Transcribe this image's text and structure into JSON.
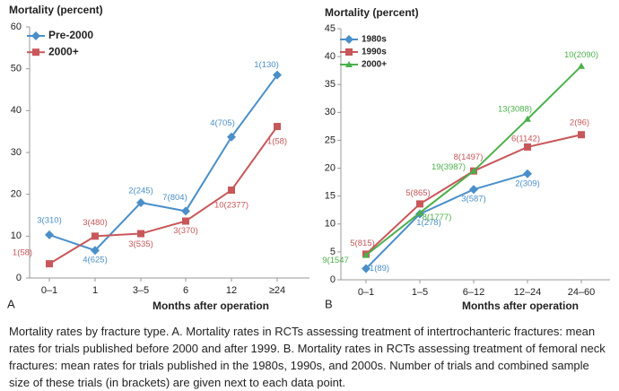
{
  "chart_data": [
    {
      "type": "line",
      "title": "Mortality (percent)",
      "panel": "A",
      "xlabel": "Months after operation",
      "categories": [
        "0–1",
        "1",
        "3–5",
        "6",
        "12",
        "≥24"
      ],
      "ylim": [
        0,
        60
      ],
      "yticks": [
        0,
        10,
        20,
        30,
        40,
        50,
        60
      ],
      "series": [
        {
          "name": "Pre-2000",
          "color": "#4a8fc8",
          "marker": "diamond",
          "values": [
            10.3,
            6.6,
            18,
            16,
            33.7,
            48.5
          ],
          "value_labels": [
            "3(310)",
            "4(625)",
            "2(245)",
            "7(804)",
            "4(705)",
            "1(130)"
          ]
        },
        {
          "name": "2000+",
          "color": "#c8575a",
          "marker": "square",
          "values": [
            3.4,
            10,
            10.6,
            13.6,
            21,
            36.2
          ],
          "value_labels": [
            "1(58)",
            "3(480)",
            "3(535)",
            "3(370)",
            "10(2377)",
            "1(58)"
          ]
        }
      ]
    },
    {
      "type": "line",
      "title": "Mortality (percent)",
      "panel": "B",
      "xlabel": "Months after operation",
      "categories": [
        "0–1",
        "1–5",
        "6–12",
        "12–24",
        "24–60"
      ],
      "ylim": [
        0,
        45
      ],
      "yticks": [
        0,
        5,
        10,
        15,
        20,
        25,
        30,
        35,
        40,
        45
      ],
      "series": [
        {
          "name": "1980s",
          "color": "#4a8fc8",
          "marker": "diamond",
          "values": [
            2,
            11.8,
            16.2,
            19,
            null
          ],
          "value_labels": [
            "1(89)",
            "1(278)",
            "3(587)",
            "2(309)",
            null
          ]
        },
        {
          "name": "1990s",
          "color": "#c8575a",
          "marker": "square",
          "values": [
            4.6,
            13.6,
            19.5,
            23.8,
            26
          ],
          "value_labels": [
            "5(815)",
            "5(865)",
            "8(1497)",
            "6(1142)",
            "2(96)"
          ]
        },
        {
          "name": "2000+",
          "color": "#4bb04b",
          "marker": "triangle",
          "values": [
            4.4,
            12,
            19.5,
            28.8,
            38.3
          ],
          "value_labels": [
            "9(1547",
            "8(1777)",
            "19(3987)",
            "13(3088)",
            "10(2090)"
          ]
        }
      ]
    }
  ],
  "caption": "Mortality rates by fracture type. A. Mortality rates in RCTs assessing treatment of intertrochanteric fractures: mean rates for trials published before 2000 and after 1999. B. Mortality rates in RCTs assessing treatment of femoral neck fractures: mean rates for trials published in the 1980s, 1990s, and 2000s. Number of trials and combined sample size of these trials (in brackets) are given next to each data point."
}
